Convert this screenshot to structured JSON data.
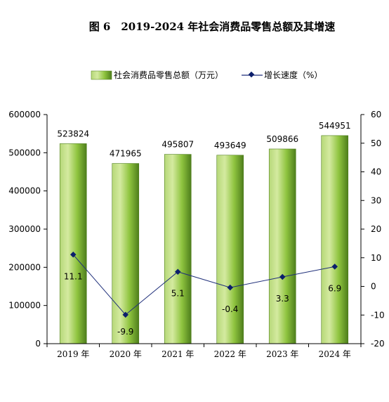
{
  "title": "图 6　2019-2024 年社会消费品零售总额及其增速",
  "legend": {
    "bar_label": "社会消费品零售总额（万元）",
    "line_label": "增长速度（%）"
  },
  "colors": {
    "bar_light": "#c4e088",
    "bar_mid": "#8fc43f",
    "bar_dark": "#4e7e1c",
    "line": "#1f2f7a",
    "marker": "#0b1e6b",
    "axis": "#000000"
  },
  "chart_data": {
    "type": "bar+line",
    "title": "图 6　2019-2024 年社会消费品零售总额及其增速",
    "categories": [
      "2019 年",
      "2020 年",
      "2021 年",
      "2022 年",
      "2023 年",
      "2024 年"
    ],
    "series": [
      {
        "name": "社会消费品零售总额（万元）",
        "type": "bar",
        "axis": "left",
        "values": [
          523824,
          471965,
          495807,
          493649,
          509866,
          544951
        ],
        "labels": [
          "523824",
          "471965",
          "495807",
          "493649",
          "509866",
          "544951"
        ]
      },
      {
        "name": "增长速度（%）",
        "type": "line",
        "axis": "right",
        "values": [
          11.1,
          -9.9,
          5.1,
          -0.4,
          3.3,
          6.9
        ],
        "labels": [
          "11.1",
          "-9.9",
          "5.1",
          "-0.4",
          "3.3",
          "6.9"
        ]
      }
    ],
    "y_left": {
      "min": 0,
      "max": 600000,
      "ticks": [
        "0",
        "100000",
        "200000",
        "300000",
        "400000",
        "500000",
        "600000"
      ]
    },
    "y_right": {
      "min": -20,
      "max": 60,
      "ticks": [
        "-20",
        "-10",
        "0",
        "10",
        "20",
        "30",
        "40",
        "50",
        "60"
      ]
    },
    "grid": false,
    "legend_position": "top"
  }
}
